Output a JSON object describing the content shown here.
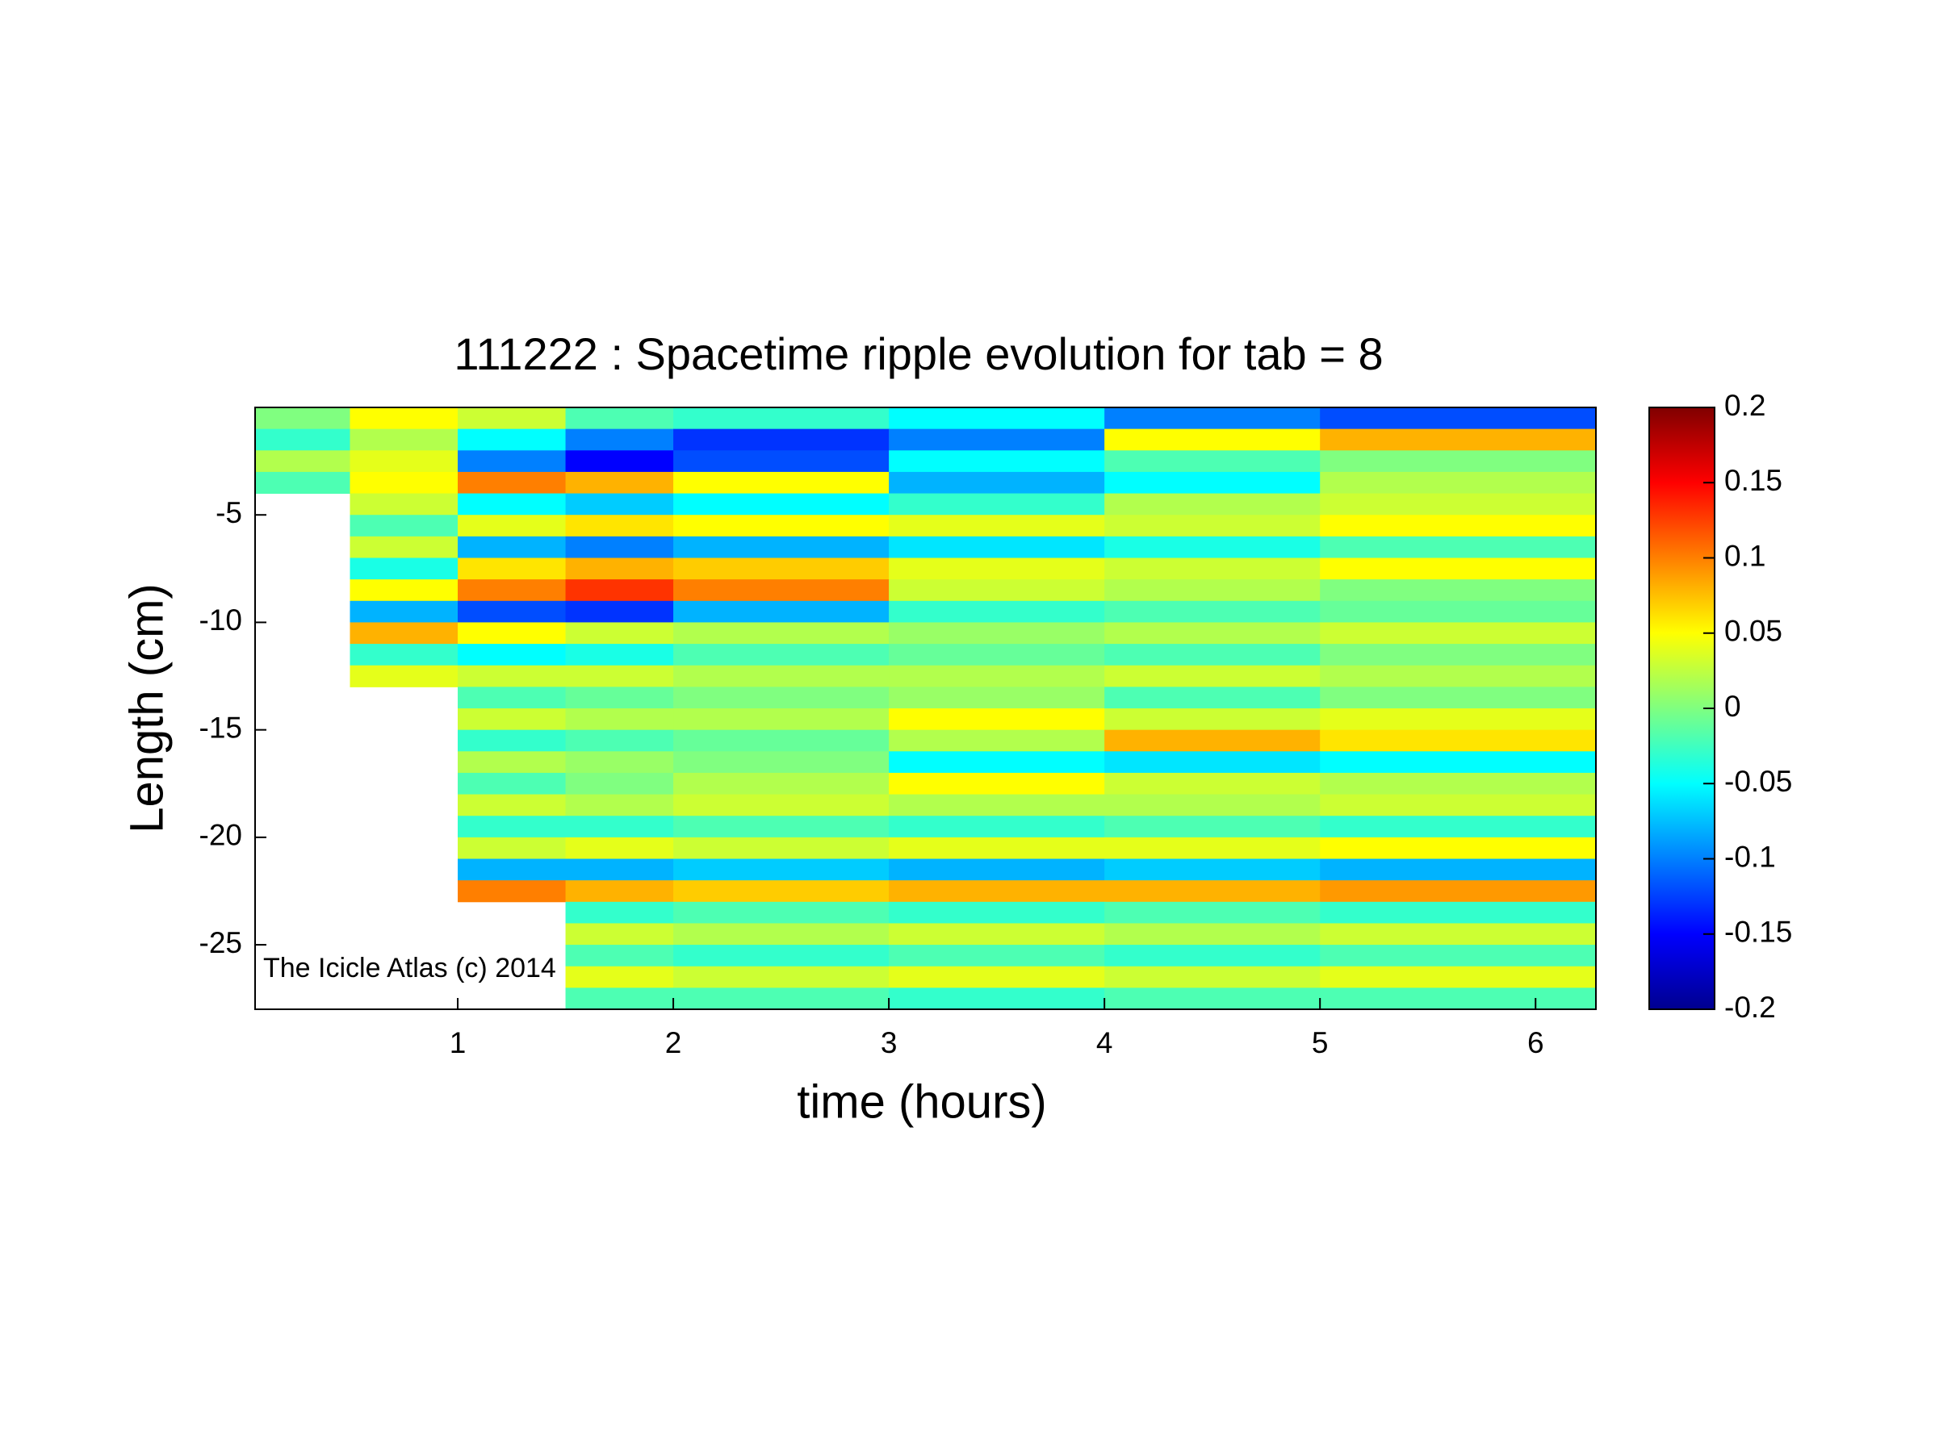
{
  "chart_data": {
    "type": "heatmap",
    "title": "111222 : Spacetime ripple evolution for tab = 8",
    "xlabel": "time (hours)",
    "ylabel": "Length (cm)",
    "annotation": "The Icicle Atlas (c) 2014",
    "colormap": "jet",
    "xlim": [
      0.06,
      6.28
    ],
    "ylim": [
      -28,
      0
    ],
    "xticks": [
      1,
      2,
      3,
      4,
      5,
      6
    ],
    "yticks": [
      -25,
      -20,
      -15,
      -10,
      -5
    ],
    "clim": [
      -0.2,
      0.2
    ],
    "cticks": [
      -0.2,
      -0.15,
      -0.1,
      -0.05,
      0,
      0.05,
      0.1,
      0.15,
      0.2
    ],
    "x_edges": [
      0.06,
      0.5,
      1,
      1.5,
      2,
      3,
      4,
      5,
      6.28
    ],
    "y_edges": [
      0,
      -1,
      -2,
      -3,
      -4,
      -5,
      -6,
      -7,
      -8,
      -9,
      -10,
      -11,
      -12,
      -13,
      -14,
      -15,
      -16,
      -17,
      -18,
      -19,
      -20,
      -21,
      -22,
      -23,
      -24,
      -25,
      -26,
      -27,
      -28
    ],
    "z": [
      [
        0,
        0.05,
        0.03,
        -0.02,
        -0.03,
        -0.05,
        -0.1,
        -0.12
      ],
      [
        -0.03,
        0.02,
        -0.05,
        -0.1,
        -0.13,
        -0.1,
        0.05,
        0.08
      ],
      [
        0.02,
        0.04,
        -0.1,
        -0.15,
        -0.12,
        -0.05,
        -0.02,
        0
      ],
      [
        -0.02,
        0.05,
        0.1,
        0.08,
        0.05,
        -0.08,
        -0.05,
        0.02
      ],
      [
        null,
        0.03,
        -0.05,
        -0.07,
        -0.05,
        -0.03,
        0.02,
        0.03
      ],
      [
        null,
        -0.02,
        0.04,
        0.06,
        0.05,
        0.04,
        0.03,
        0.05
      ],
      [
        null,
        0.03,
        -0.08,
        -0.1,
        -0.08,
        -0.06,
        -0.04,
        -0.02
      ],
      [
        null,
        -0.04,
        0.06,
        0.08,
        0.07,
        0.04,
        0.03,
        0.05
      ],
      [
        null,
        0.05,
        0.1,
        0.13,
        0.1,
        0.03,
        0.02,
        0
      ],
      [
        null,
        -0.08,
        -0.12,
        -0.13,
        -0.08,
        -0.03,
        -0.02,
        -0.01
      ],
      [
        null,
        0.08,
        0.05,
        0.03,
        0.02,
        0.01,
        0.02,
        0.03
      ],
      [
        null,
        -0.03,
        -0.05,
        -0.04,
        -0.02,
        -0.01,
        -0.02,
        0
      ],
      [
        null,
        0.04,
        0.03,
        0.03,
        0.02,
        0.02,
        0.03,
        0.02
      ],
      [
        null,
        null,
        -0.02,
        -0.01,
        0,
        0.01,
        -0.02,
        0
      ],
      [
        null,
        null,
        0.03,
        0.02,
        0.02,
        0.05,
        0.03,
        0.04
      ],
      [
        null,
        null,
        -0.03,
        -0.02,
        -0.01,
        0.02,
        0.08,
        0.06
      ],
      [
        null,
        null,
        0.02,
        0.01,
        0,
        -0.05,
        -0.06,
        -0.05
      ],
      [
        null,
        null,
        -0.02,
        0,
        0.02,
        0.05,
        0.03,
        0.02
      ],
      [
        null,
        null,
        0.03,
        0.02,
        0.03,
        0.02,
        0.02,
        0.03
      ],
      [
        null,
        null,
        -0.03,
        -0.03,
        -0.02,
        -0.03,
        -0.02,
        -0.03
      ],
      [
        null,
        null,
        0.03,
        0.04,
        0.03,
        0.04,
        0.04,
        0.05
      ],
      [
        null,
        null,
        -0.08,
        -0.08,
        -0.07,
        -0.08,
        -0.07,
        -0.08
      ],
      [
        null,
        null,
        0.1,
        0.08,
        0.07,
        0.08,
        0.08,
        0.09
      ],
      [
        null,
        null,
        null,
        -0.03,
        -0.02,
        -0.03,
        -0.02,
        -0.03
      ],
      [
        null,
        null,
        null,
        0.03,
        0.02,
        0.03,
        0.02,
        0.03
      ],
      [
        null,
        null,
        null,
        -0.02,
        -0.03,
        -0.02,
        -0.03,
        -0.02
      ],
      [
        null,
        null,
        null,
        0.04,
        0.03,
        0.04,
        0.03,
        0.04
      ],
      [
        null,
        null,
        null,
        -0.02,
        -0.02,
        -0.03,
        -0.02,
        -0.02
      ]
    ]
  }
}
